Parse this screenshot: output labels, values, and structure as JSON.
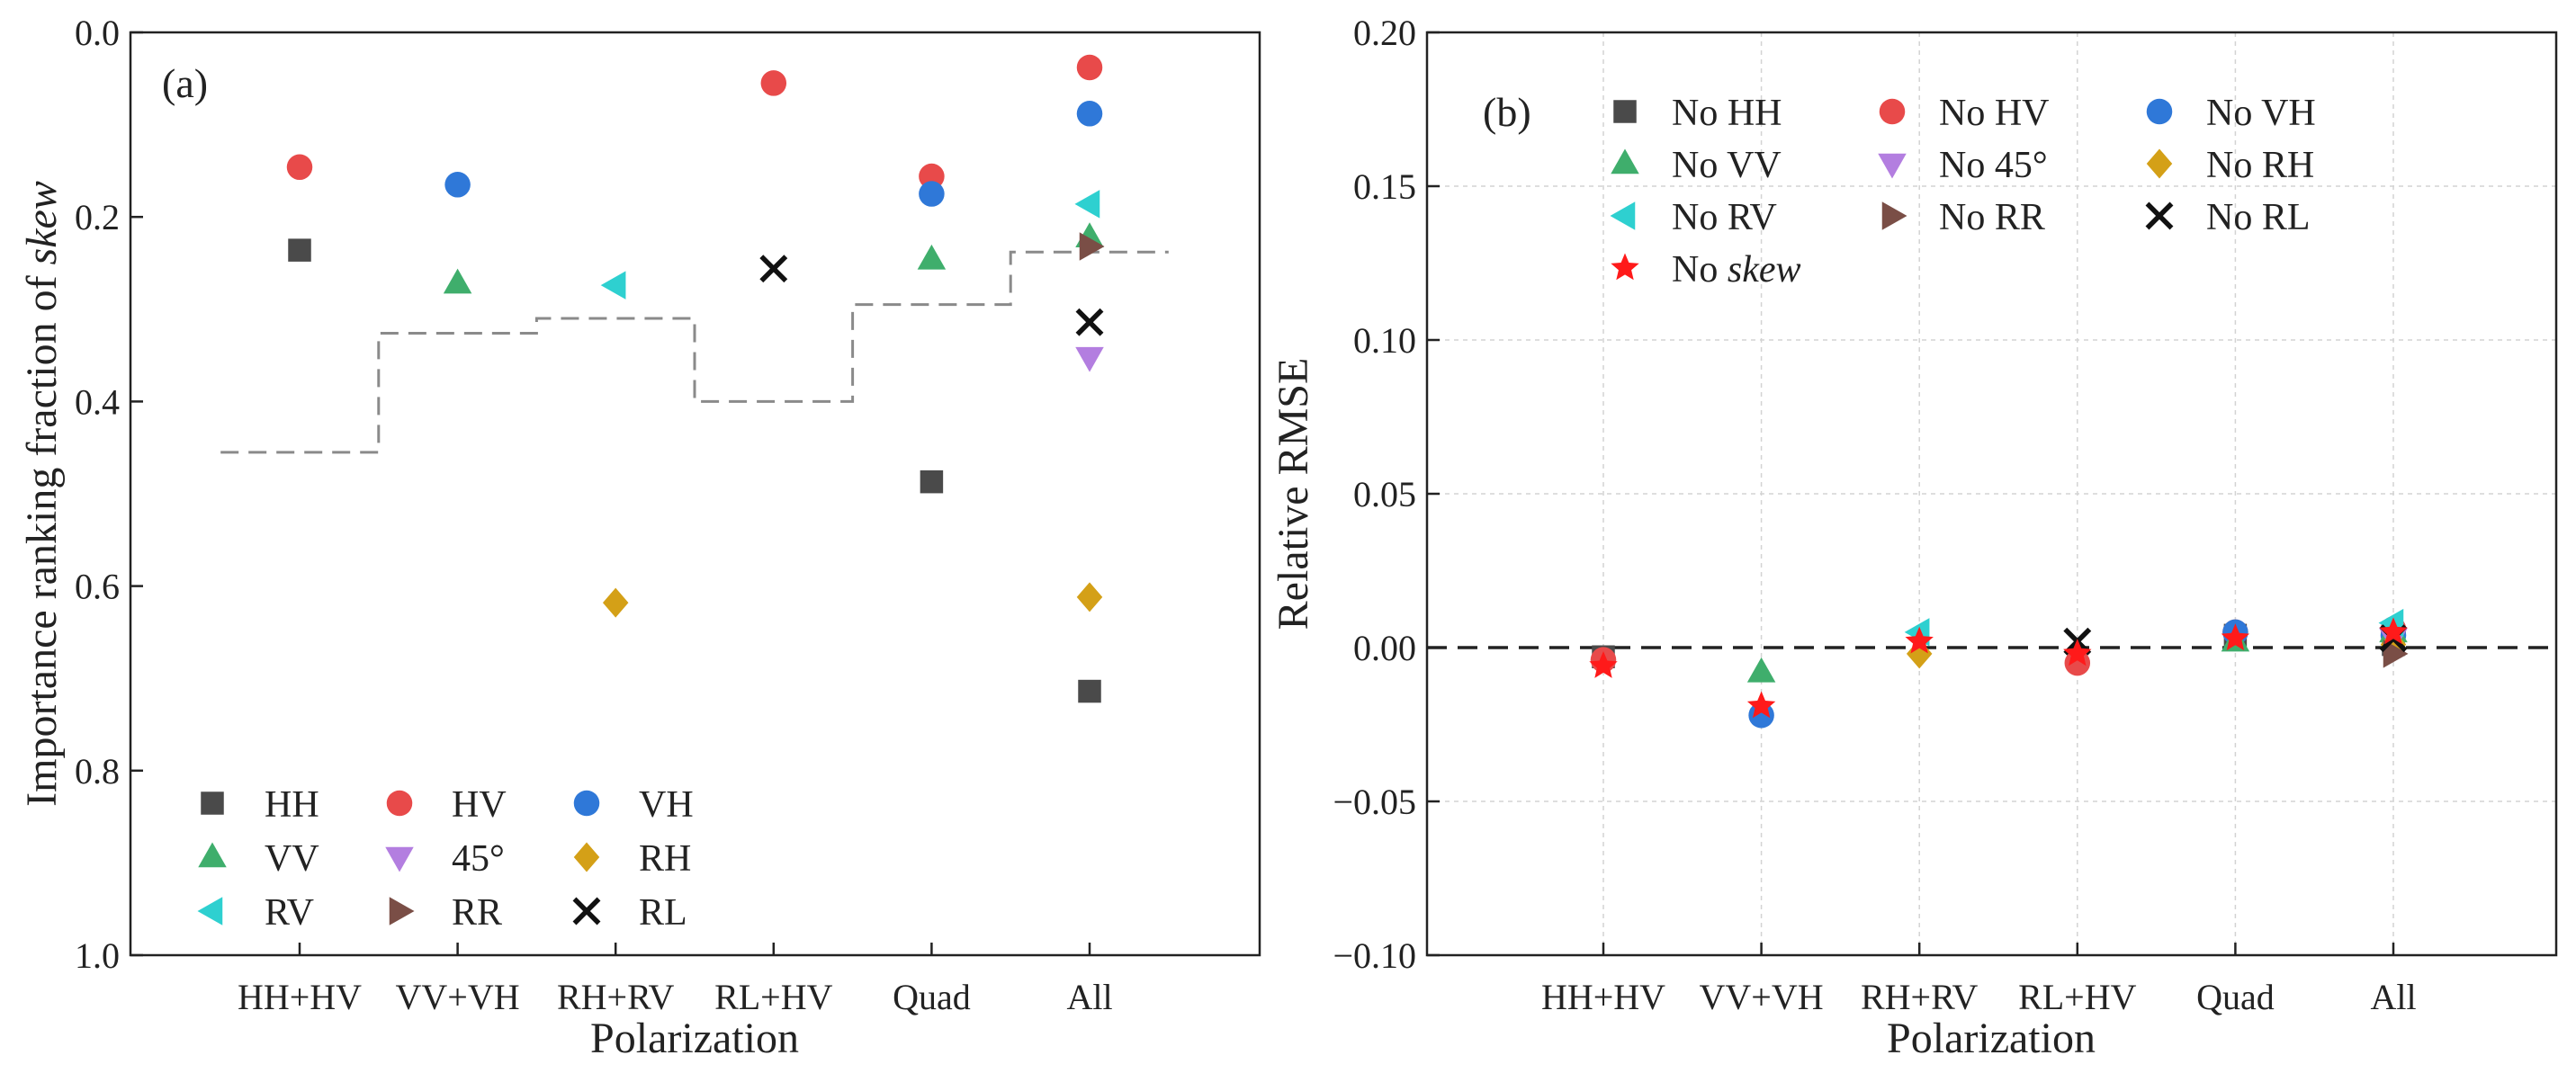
{
  "colors": {
    "HH": "#4a4a4a",
    "HV": "#e84a4a",
    "VH": "#2f78d8",
    "VV": "#3fae6c",
    "45": "#b37ee0",
    "RH": "#d4a017",
    "RV": "#2ed0d0",
    "RR": "#7a4e46",
    "RL": "#111111",
    "skew": "#ff1a1a",
    "step": "#8a8a8a",
    "grid": "#d3d3d3"
  },
  "chart_data": [
    {
      "type": "scatter",
      "panel_label": "(a)",
      "xlabel": "Polarization",
      "ylabel_prefix": "Importance ranking fraction of ",
      "ylabel_italic": "skew",
      "categories": [
        "HH+HV",
        "VV+VH",
        "RH+RV",
        "RL+HV",
        "Quad",
        "All"
      ],
      "ylim": [
        1.0,
        0.0
      ],
      "y_inverted": true,
      "yticks": [
        "0.0",
        "0.2",
        "0.4",
        "0.6",
        "0.8",
        "1.0"
      ],
      "grid": false,
      "legend_position": "lower-left",
      "legend": [
        {
          "key": "HH",
          "label": "HH",
          "marker": "square"
        },
        {
          "key": "HV",
          "label": "HV",
          "marker": "circle"
        },
        {
          "key": "VH",
          "label": "VH",
          "marker": "circle"
        },
        {
          "key": "VV",
          "label": "VV",
          "marker": "triangle-up"
        },
        {
          "key": "45",
          "label": "45°",
          "marker": "triangle-down"
        },
        {
          "key": "RH",
          "label": "RH",
          "marker": "diamond"
        },
        {
          "key": "RV",
          "label": "RV",
          "marker": "triangle-left"
        },
        {
          "key": "RR",
          "label": "RR",
          "marker": "triangle-right"
        },
        {
          "key": "RL",
          "label": "RL",
          "marker": "x"
        }
      ],
      "series": [
        {
          "key": "HH",
          "values": [
            0.236,
            null,
            null,
            null,
            0.487,
            0.714
          ]
        },
        {
          "key": "HV",
          "values": [
            0.146,
            null,
            null,
            0.055,
            0.156,
            0.038
          ]
        },
        {
          "key": "VH",
          "values": [
            null,
            0.165,
            null,
            null,
            0.175,
            0.088
          ]
        },
        {
          "key": "VV",
          "values": [
            null,
            0.272,
            null,
            null,
            0.246,
            0.222
          ]
        },
        {
          "key": "45",
          "values": [
            null,
            null,
            null,
            null,
            null,
            0.352
          ]
        },
        {
          "key": "RH",
          "values": [
            null,
            null,
            0.618,
            null,
            null,
            0.612
          ]
        },
        {
          "key": "RV",
          "values": [
            null,
            null,
            0.274,
            null,
            null,
            0.186
          ]
        },
        {
          "key": "RR",
          "values": [
            null,
            null,
            null,
            null,
            null,
            0.232
          ]
        },
        {
          "key": "RL",
          "values": [
            null,
            null,
            null,
            0.256,
            null,
            0.314
          ]
        }
      ],
      "step_line": [
        0.455,
        0.326,
        0.31,
        0.4,
        0.295,
        0.238
      ]
    },
    {
      "type": "scatter",
      "panel_label": "(b)",
      "xlabel": "Polarization",
      "ylabel": "Relative RMSE",
      "categories": [
        "HH+HV",
        "VV+VH",
        "RH+RV",
        "RL+HV",
        "Quad",
        "All"
      ],
      "ylim": [
        -0.1,
        0.2
      ],
      "yticks": [
        "0.20",
        "0.15",
        "0.10",
        "0.05",
        "0.00",
        "−0.05",
        "−0.10"
      ],
      "grid": true,
      "reference_line": 0.0,
      "legend_position": "top-left",
      "legend": [
        {
          "key": "HH",
          "label_pre": "No ",
          "label_main": "HH",
          "italic": false,
          "marker": "square"
        },
        {
          "key": "HV",
          "label_pre": "No ",
          "label_main": "HV",
          "italic": false,
          "marker": "circle"
        },
        {
          "key": "VH",
          "label_pre": "No ",
          "label_main": "VH",
          "italic": false,
          "marker": "circle"
        },
        {
          "key": "VV",
          "label_pre": "No ",
          "label_main": "VV",
          "italic": false,
          "marker": "triangle-up"
        },
        {
          "key": "45",
          "label_pre": "No ",
          "label_main": "45°",
          "italic": false,
          "marker": "triangle-down"
        },
        {
          "key": "RH",
          "label_pre": "No ",
          "label_main": "RH",
          "italic": false,
          "marker": "diamond"
        },
        {
          "key": "RV",
          "label_pre": "No ",
          "label_main": "RV",
          "italic": false,
          "marker": "triangle-left"
        },
        {
          "key": "RR",
          "label_pre": "No ",
          "label_main": "RR",
          "italic": false,
          "marker": "triangle-right"
        },
        {
          "key": "RL",
          "label_pre": "No ",
          "label_main": "RL",
          "italic": false,
          "marker": "x"
        },
        {
          "key": "skew",
          "label_pre": "No ",
          "label_main": "skew",
          "italic": true,
          "marker": "star"
        }
      ],
      "series": [
        {
          "key": "HH",
          "values": [
            -0.003,
            null,
            null,
            null,
            0.004,
            0.001
          ]
        },
        {
          "key": "HV",
          "values": [
            -0.004,
            null,
            null,
            -0.005,
            0.005,
            0.006
          ]
        },
        {
          "key": "VH",
          "values": [
            null,
            -0.022,
            null,
            null,
            0.005,
            0.004
          ]
        },
        {
          "key": "VV",
          "values": [
            null,
            -0.008,
            null,
            null,
            0.002,
            0.005
          ]
        },
        {
          "key": "45",
          "values": [
            null,
            null,
            null,
            null,
            null,
            0.003
          ]
        },
        {
          "key": "RH",
          "values": [
            null,
            null,
            -0.002,
            null,
            null,
            0.001
          ]
        },
        {
          "key": "RV",
          "values": [
            null,
            null,
            0.005,
            null,
            null,
            0.008
          ]
        },
        {
          "key": "RR",
          "values": [
            null,
            null,
            null,
            null,
            null,
            -0.002
          ]
        },
        {
          "key": "RL",
          "values": [
            null,
            null,
            null,
            0.002,
            null,
            0.003
          ]
        },
        {
          "key": "skew",
          "values": [
            -0.006,
            -0.019,
            0.002,
            -0.002,
            0.003,
            0.005
          ]
        }
      ]
    }
  ]
}
